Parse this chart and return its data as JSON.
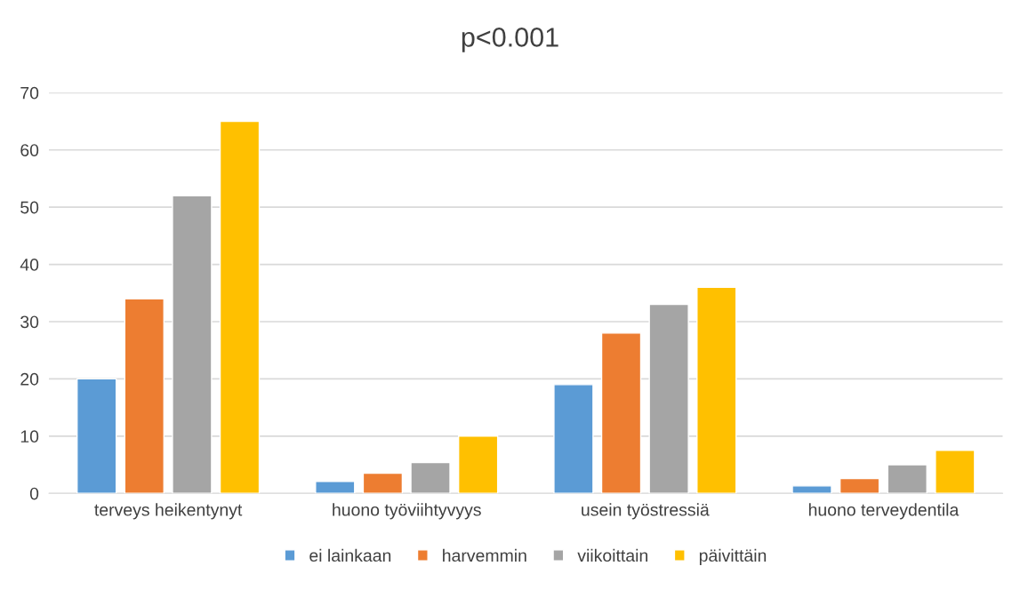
{
  "chart_data": {
    "type": "bar",
    "title": "p<0.001",
    "categories": [
      "terveys heikentynyt",
      "huono työviihtyvyys",
      "usein työstressiä",
      "huono terveydentila"
    ],
    "series": [
      {
        "name": "ei lainkaan",
        "color": "#5b9bd5",
        "values": [
          20,
          2.1,
          19,
          1.3
        ]
      },
      {
        "name": "harvemmin",
        "color": "#ed7d31",
        "values": [
          34,
          3.5,
          28,
          2.6
        ]
      },
      {
        "name": "viikoittain",
        "color": "#a5a5a5",
        "values": [
          52,
          5.4,
          33,
          5.0
        ]
      },
      {
        "name": "päivittäin",
        "color": "#ffc000",
        "values": [
          65,
          10,
          36,
          7.5
        ]
      }
    ],
    "ylim": [
      0,
      70
    ],
    "yticks": [
      0,
      10,
      20,
      30,
      40,
      50,
      60,
      70
    ],
    "grid": "y",
    "legend": "bottom"
  }
}
